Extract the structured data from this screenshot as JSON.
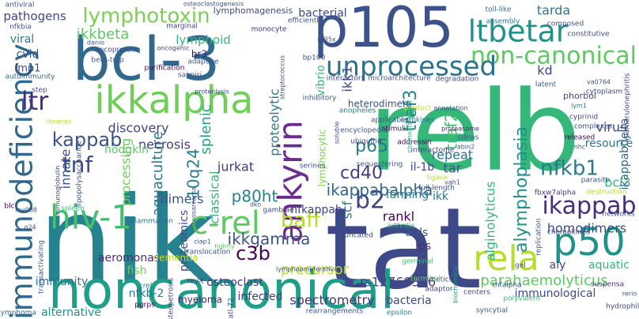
{
  "word_cloud": {
    "background": "#ffffff",
    "palette_note_colors": [
      "#440154",
      "#3b528b",
      "#21908d",
      "#5dc863",
      "#fde725"
    ],
    "words": [
      {
        "text": "relb",
        "color": "#35b779"
      },
      {
        "text": "nik",
        "color": "#26828e"
      },
      {
        "text": "tat",
        "color": "#3e4989"
      },
      {
        "text": "noncanonical",
        "color": "#1f9e89"
      },
      {
        "text": "bcl-3",
        "color": "#31688e"
      },
      {
        "text": "p105",
        "color": "#3b528b"
      },
      {
        "text": "ltbetar",
        "color": "#21918c"
      },
      {
        "text": "non-canonical",
        "color": "#5ec962"
      },
      {
        "text": "ikkalpha",
        "color": "#6ece58"
      },
      {
        "text": "ankyrin",
        "color": "#6a2c8e"
      },
      {
        "text": "unprocessed",
        "color": "#2c728e"
      },
      {
        "text": "immunodeficiency",
        "color": "#31688e"
      },
      {
        "text": "lymphotoxin",
        "color": "#7ad151"
      },
      {
        "text": "hiv-1",
        "color": "#44bf70"
      },
      {
        "text": "c-rel",
        "color": "#5ec962"
      },
      {
        "text": "p50",
        "color": "#21918c"
      },
      {
        "text": "rela",
        "color": "#b5de2b"
      },
      {
        "text": "ikappab",
        "color": "#472d7b"
      },
      {
        "text": "b2",
        "color": "#414487"
      },
      {
        "text": "kappab",
        "color": "#3b528b"
      },
      {
        "text": "ikkbeta",
        "color": "#5ec962"
      },
      {
        "text": "ltr",
        "color": "#472d7b"
      },
      {
        "text": "tnf",
        "color": "#3e4989"
      },
      {
        "text": "p65",
        "color": "#2a788e"
      },
      {
        "text": "cd40",
        "color": "#443983"
      },
      {
        "text": "nfkb1",
        "color": "#2a788e"
      },
      {
        "text": "traf3",
        "color": "#26828e"
      },
      {
        "text": "traf2",
        "color": "#44bf70"
      },
      {
        "text": "baff",
        "color": "#b5de2b"
      },
      {
        "text": "ikkgamma",
        "color": "#3b528b"
      },
      {
        "text": "10q24",
        "color": "#287c8e"
      },
      {
        "text": "p80ht",
        "color": "#26828e"
      },
      {
        "text": "aquaculture",
        "color": "#2a788e"
      },
      {
        "text": "ikappabalpha",
        "color": "#31688e"
      },
      {
        "text": "ikappabdelta",
        "color": "#31688e"
      },
      {
        "text": "bcl3",
        "color": "#35b779"
      },
      {
        "text": "c3b",
        "color": "#440154"
      },
      {
        "text": "jurkat",
        "color": "#443983"
      },
      {
        "text": "splenic",
        "color": "#20a386"
      },
      {
        "text": "necrosis",
        "color": "#433e85"
      },
      {
        "text": "pathogens",
        "color": "#414487"
      },
      {
        "text": "ikk1",
        "color": "#3e4989"
      },
      {
        "text": "viral",
        "color": "#2a788e"
      },
      {
        "text": "cvid",
        "color": "#3b528b"
      },
      {
        "text": "lmp1",
        "color": "#3e4989"
      },
      {
        "text": "repeat",
        "color": "#2c728e"
      },
      {
        "text": "tar",
        "color": "#3b528b"
      },
      {
        "text": "farming",
        "color": "#2a788e"
      },
      {
        "text": "il-1b",
        "color": "#414487"
      },
      {
        "text": "ikk",
        "color": "#2d708e"
      },
      {
        "text": "homodimers",
        "color": "#3e4989"
      },
      {
        "text": "virus",
        "color": "#3e4989"
      },
      {
        "text": "resource",
        "color": "#2a788e"
      },
      {
        "text": "proteolytic",
        "color": "#2a788e"
      },
      {
        "text": "discovery",
        "color": "#414487"
      },
      {
        "text": "processing",
        "color": "#6ece58"
      },
      {
        "text": "innate",
        "color": "#3b528b"
      },
      {
        "text": "classical",
        "color": "#35b779"
      },
      {
        "text": "dimers",
        "color": "#38598c"
      },
      {
        "text": "hodgkin",
        "color": "#5ec962"
      },
      {
        "text": "alymphoplasia",
        "color": "#21918c"
      },
      {
        "text": "alginolyticus",
        "color": "#32b67a"
      },
      {
        "text": "rankl",
        "color": "#440154"
      },
      {
        "text": "aids",
        "color": "#3b528b"
      },
      {
        "text": "lps",
        "color": "#472d7b"
      },
      {
        "text": "scf",
        "color": "#2c728e"
      },
      {
        "text": "nfkappab",
        "color": "#414487"
      },
      {
        "text": "precursor",
        "color": "#bddf26"
      },
      {
        "text": "proteomics",
        "color": "#3e4989"
      },
      {
        "text": "aeromonas",
        "color": "#472d7b"
      },
      {
        "text": "rs12769316",
        "color": "#404688"
      },
      {
        "text": "osteoclast",
        "color": "#453781"
      },
      {
        "text": "spectrometry",
        "color": "#46327e"
      },
      {
        "text": "infected",
        "color": "#443a83"
      },
      {
        "text": "bacteria",
        "color": "#3e4989"
      },
      {
        "text": "parahaemolyticus",
        "color": "#5ec962"
      },
      {
        "text": "immunological",
        "color": "#3e4989"
      },
      {
        "text": "aquatic",
        "color": "#35b779"
      },
      {
        "text": "aly",
        "color": "#414487"
      },
      {
        "text": "nfkb-2",
        "color": "#2a788e"
      },
      {
        "text": "myeloma",
        "color": "#482677"
      },
      {
        "text": "alternative",
        "color": "#21918c"
      },
      {
        "text": "immunity",
        "color": "#2c728e"
      },
      {
        "text": "fish",
        "color": "#6ece58"
      },
      {
        "text": "dementia",
        "color": "#c2df23"
      },
      {
        "text": "lymphoid",
        "color": "#35b779"
      },
      {
        "text": "vibrio",
        "color": "#35b779"
      },
      {
        "text": "tarda",
        "color": "#2a788e"
      },
      {
        "text": "bacterial",
        "color": "#3e4989"
      },
      {
        "text": "kd",
        "color": "#414487"
      },
      {
        "text": "lymphocytic",
        "color": "#7ad151"
      },
      {
        "text": "br3",
        "color": "#471164"
      },
      {
        "text": "heterodimers",
        "color": "#3b528b"
      },
      {
        "text": "lymphomagenesis",
        "color": "#3e4989"
      },
      {
        "text": "bp100",
        "color": "#3b528b"
      },
      {
        "text": "toll-like",
        "color": "#31688e"
      },
      {
        "text": "degradation",
        "color": "#3e4989"
      },
      {
        "text": "phorbol",
        "color": "#414487"
      },
      {
        "text": "proteasome",
        "color": "#472d7b"
      },
      {
        "text": "cytokines",
        "color": "#2d708e"
      },
      {
        "text": "stimuli",
        "color": "#440154"
      },
      {
        "text": "cyprinid",
        "color": "#414487"
      },
      {
        "text": "complexes",
        "color": "#3b528b"
      },
      {
        "text": "released",
        "color": "#440154"
      },
      {
        "text": "lym1",
        "color": "#2a788e"
      },
      {
        "text": "fbxw7alpha",
        "color": "#46327e"
      },
      {
        "text": "ligase",
        "color": "#b5de2b"
      },
      {
        "text": "full-length",
        "color": "#3b528b"
      },
      {
        "text": "inflammation",
        "color": "#2c728e"
      },
      {
        "text": "translocation",
        "color": "#3b528b"
      },
      {
        "text": "gambiae",
        "color": "#3e4989"
      },
      {
        "text": "arthritis",
        "color": "#35b779"
      },
      {
        "text": "truncated",
        "color": "#3e4989"
      },
      {
        "text": "germinal",
        "color": "#44bf70"
      },
      {
        "text": "kinetics",
        "color": "#414487"
      },
      {
        "text": "adaptor",
        "color": "#3e4989"
      },
      {
        "text": "tnfalpha",
        "color": "#3b528b"
      },
      {
        "text": "polyvalent",
        "color": "#35b779"
      },
      {
        "text": "suspensa",
        "color": "#472d7b"
      },
      {
        "text": "syncytial",
        "color": "#3b528b"
      },
      {
        "text": "epsilon",
        "color": "#2a788e"
      },
      {
        "text": "hydrophila",
        "color": "#414487"
      },
      {
        "text": "lymphoma",
        "color": "#31688e"
      },
      {
        "text": "pgrps",
        "color": "#440154"
      },
      {
        "text": "crel",
        "color": "#2a788e"
      },
      {
        "text": "osteopetrosis",
        "color": "#3e4989"
      },
      {
        "text": "tatl-72",
        "color": "#3e4989"
      },
      {
        "text": "rev-t",
        "color": "#472d7b"
      },
      {
        "text": "lymphoproliferative",
        "color": "#3e4989"
      },
      {
        "text": "rearrangements",
        "color": "#3b528b"
      },
      {
        "text": "biochemical",
        "color": "#21918c"
      },
      {
        "text": "encyclopedia",
        "color": "#3b528b"
      },
      {
        "text": "ubiquitin",
        "color": "#3e4989"
      },
      {
        "text": "addressin",
        "color": "#440154"
      },
      {
        "text": "interactome",
        "color": "#414487"
      },
      {
        "text": "sequestering",
        "color": "#3b528b"
      },
      {
        "text": "serines",
        "color": "#3e4989"
      },
      {
        "text": "antiviral",
        "color": "#3b528b"
      },
      {
        "text": "nfkbia",
        "color": "#3b528b"
      },
      {
        "text": "autoimmunity",
        "color": "#31688e"
      },
      {
        "text": "lipopolysaccharide",
        "color": "#3b528b"
      },
      {
        "text": "marginal",
        "color": "#414487"
      },
      {
        "text": "monocyte",
        "color": "#472d7b"
      },
      {
        "text": "oncoprotein",
        "color": "#3e4989"
      },
      {
        "text": "beta-trcp",
        "color": "#3b528b"
      },
      {
        "text": "purification",
        "color": "#440154"
      },
      {
        "text": "saimiri",
        "color": "#3b528b"
      },
      {
        "text": "adaptive",
        "color": "#3b528b"
      },
      {
        "text": "efficiently",
        "color": "#3b528b"
      },
      {
        "text": "assembly",
        "color": "#2a788e"
      },
      {
        "text": "composed",
        "color": "#3b528b"
      },
      {
        "text": "constitutive",
        "color": "#3e4989"
      },
      {
        "text": "va0764",
        "color": "#3b528b"
      },
      {
        "text": "glomerulonephritis",
        "color": "#3e4989"
      },
      {
        "text": "cytoplasm",
        "color": "#414487"
      },
      {
        "text": "microarchitecture",
        "color": "#3b528b"
      },
      {
        "text": "interactors",
        "color": "#3e4989"
      },
      {
        "text": "inhibitory",
        "color": "#3b528b"
      },
      {
        "text": "anopheles",
        "color": "#2a788e"
      },
      {
        "text": "product",
        "color": "#c2df23"
      },
      {
        "text": "annotation",
        "color": "#3b528b"
      },
      {
        "text": "chemoattractant",
        "color": "#35b779"
      },
      {
        "text": "applicable",
        "color": "#3b528b"
      },
      {
        "text": "cdnas",
        "color": "#3b528b"
      },
      {
        "text": "latent",
        "color": "#3b528b"
      },
      {
        "text": "parasite",
        "color": "#3b528b"
      },
      {
        "text": "destruction",
        "color": "#b5de2b"
      },
      {
        "text": "networks",
        "color": "#3b528b"
      },
      {
        "text": "chemokines",
        "color": "#3b528b"
      },
      {
        "text": "replication",
        "color": "#3b528b"
      },
      {
        "text": "terminal",
        "color": "#6ece58"
      },
      {
        "text": "centers",
        "color": "#3e4989"
      },
      {
        "text": "gel",
        "color": "#3b528b"
      },
      {
        "text": "rerio",
        "color": "#3b528b"
      },
      {
        "text": "step",
        "color": "#3b528b"
      },
      {
        "text": "blc",
        "color": "#440154"
      },
      {
        "text": "my088",
        "color": "#3b528b"
      },
      {
        "text": "q24",
        "color": "#3b528b"
      },
      {
        "text": "spleen",
        "color": "#35b779"
      },
      {
        "text": "transactivating",
        "color": "#3b528b"
      },
      {
        "text": "immunoglobulin",
        "color": "#3e4989"
      },
      {
        "text": "ciap1",
        "color": "#3b528b"
      },
      {
        "text": "dko",
        "color": "#3b528b"
      },
      {
        "text": "soluble",
        "color": "#3b528b"
      },
      {
        "text": "tightly",
        "color": "#5ec962"
      },
      {
        "text": "danio",
        "color": "#3b528b"
      },
      {
        "text": "r635x",
        "color": "#3b528b"
      },
      {
        "text": "streptococcus",
        "color": "#3b528b"
      },
      {
        "text": "proteolysis",
        "color": "#3b528b"
      },
      {
        "text": "osteoclastogenesis",
        "color": "#3b528b"
      },
      {
        "text": "oncogenic",
        "color": "#3e4989"
      },
      {
        "text": "libraries",
        "color": "#b5de2b"
      },
      {
        "text": "abin2",
        "color": "#3b528b"
      },
      {
        "text": "vah1",
        "color": "#3b528b"
      },
      {
        "text": "bcl",
        "color": "#3b528b"
      },
      {
        "text": "nhc",
        "color": "#3b528b"
      },
      {
        "text": "osteosarcoma",
        "color": "#3b528b"
      }
    ]
  }
}
